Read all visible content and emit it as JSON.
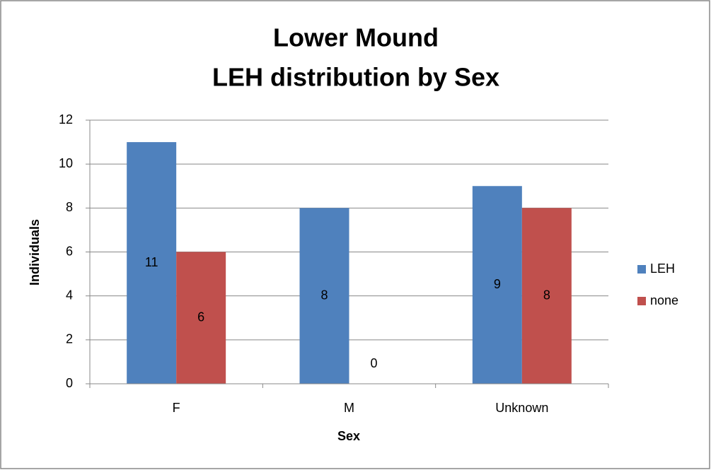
{
  "chart_data": {
    "type": "bar",
    "title": [
      "Lower Mound",
      "LEH distribution by Sex"
    ],
    "x_label": "Sex",
    "y_label": "Individuals",
    "categories": [
      "F",
      "M",
      "Unknown"
    ],
    "series": [
      {
        "name": "LEH",
        "color": "#4f81bd",
        "values": [
          11,
          8,
          9
        ]
      },
      {
        "name": "none",
        "color": "#c0504d",
        "values": [
          6,
          0,
          8
        ]
      }
    ],
    "ylim": [
      0,
      12
    ],
    "yticks": [
      0,
      2,
      4,
      6,
      8,
      10,
      12
    ],
    "grid": true,
    "legend": "right"
  }
}
